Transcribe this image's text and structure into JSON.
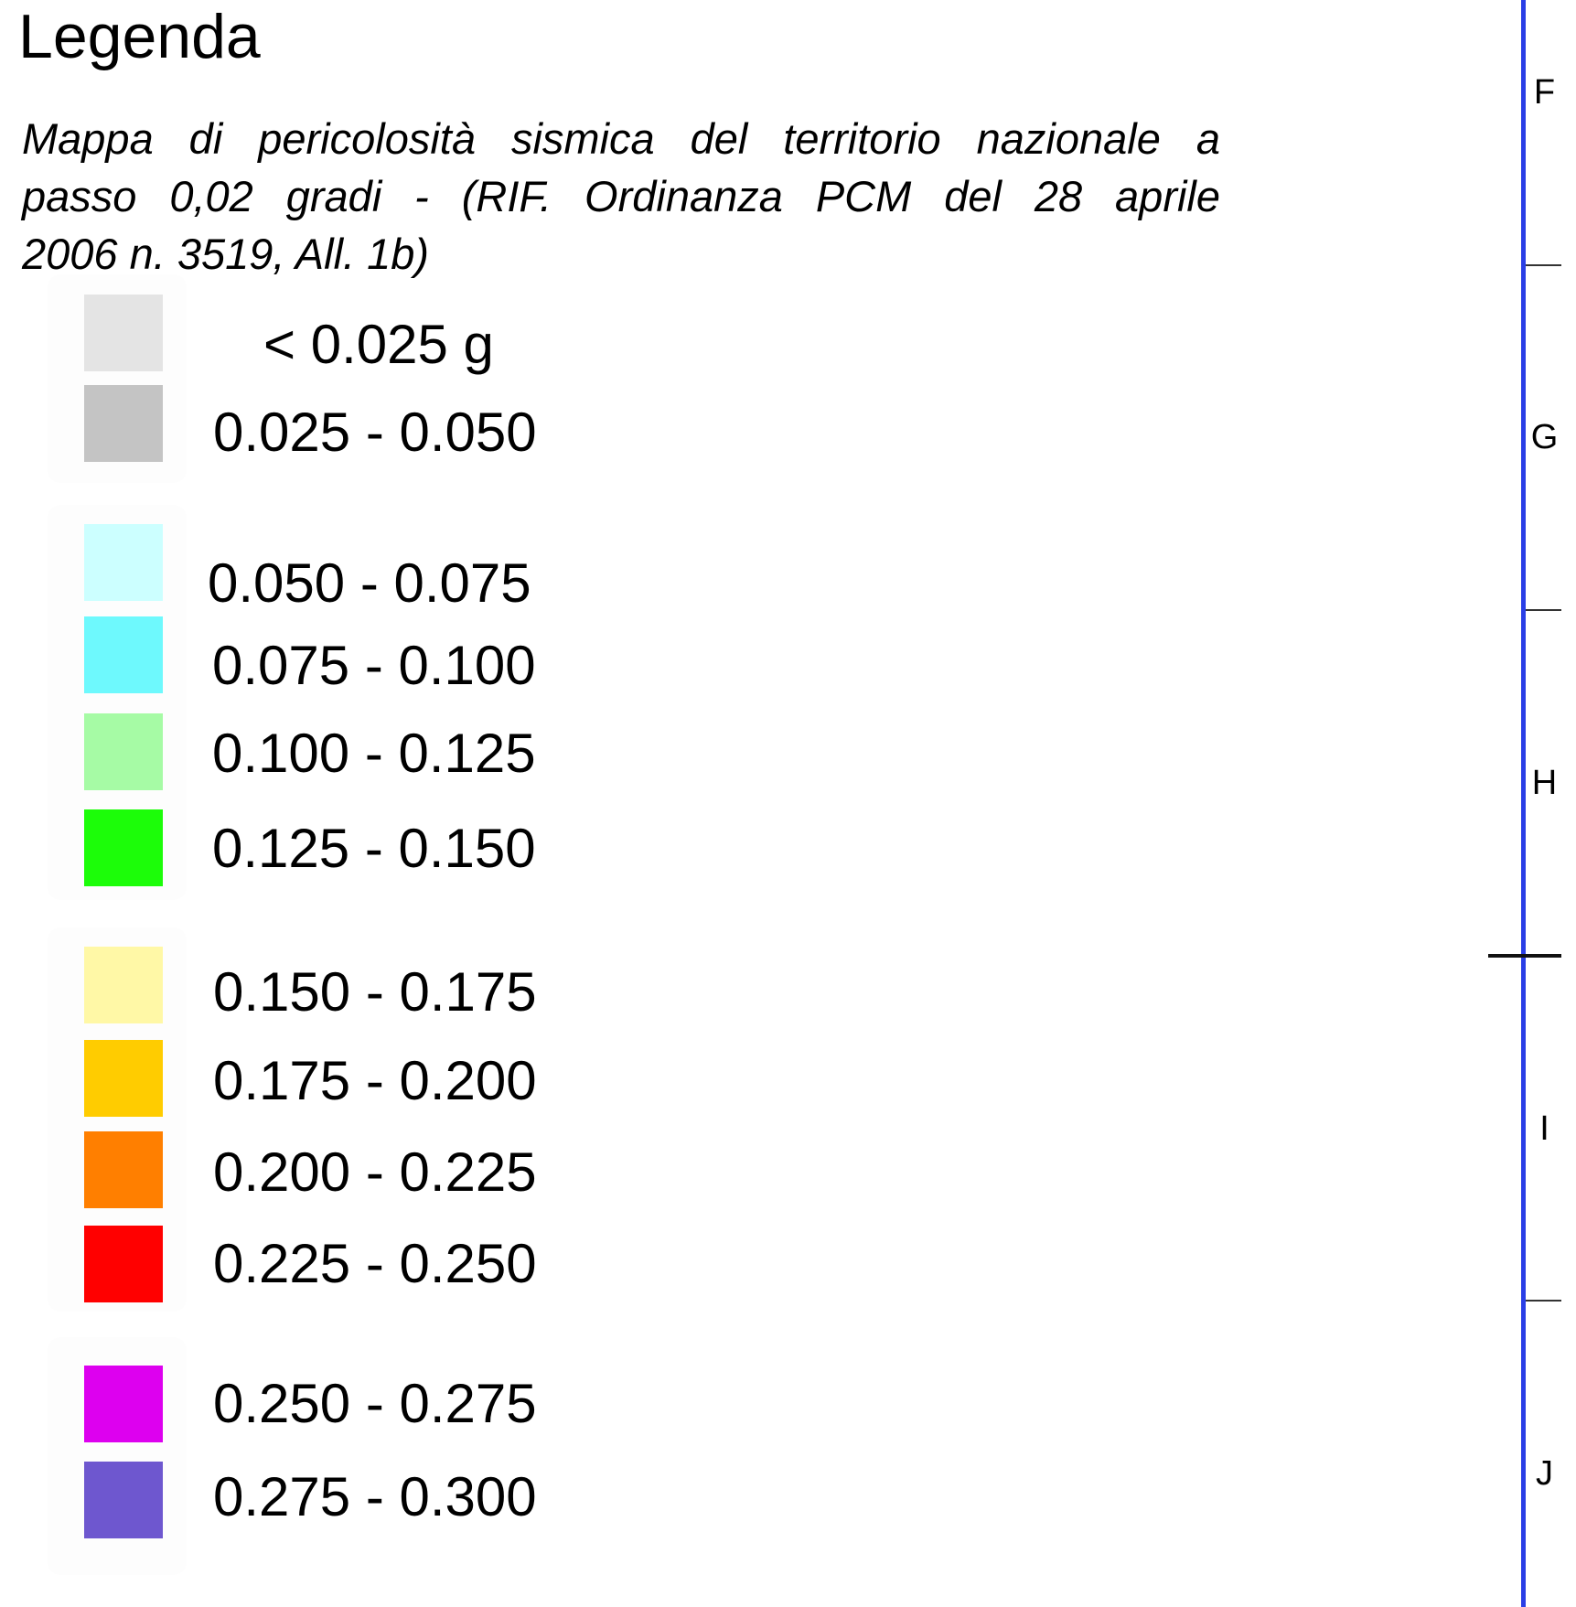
{
  "legend": {
    "title": "Legenda",
    "description_lines": [
      "Mappa di pericolosità sismica del territorio nazionale  a",
      "passo 0,02 gradi - (RIF. Ordinanza PCM del 28 aprile",
      "2006 n. 3519, All. 1b)"
    ],
    "classes": [
      {
        "label": "< 0.025 g",
        "color": "#e4e4e4"
      },
      {
        "label": "0.025 - 0.050",
        "color": "#c4c4c4"
      },
      {
        "label": "0.050 - 0.075",
        "color": "#ccffff"
      },
      {
        "label": "0.075 - 0.100",
        "color": "#6ef9fd"
      },
      {
        "label": "0.100 - 0.125",
        "color": "#a6fba5"
      },
      {
        "label": "0.125 - 0.150",
        "color": "#1cfd09"
      },
      {
        "label": "0.150 - 0.175",
        "color": "#fff8a6"
      },
      {
        "label": "0.175 - 0.200",
        "color": "#ffcc00"
      },
      {
        "label": "0.200 - 0.225",
        "color": "#ff7f00"
      },
      {
        "label": "0.225 - 0.250",
        "color": "#ff0000"
      },
      {
        "label": "0.250 - 0.275",
        "color": "#dd00ef"
      },
      {
        "label": "0.275 - 0.300",
        "color": "#6e57cf"
      }
    ]
  },
  "grid": {
    "line_color": "#2a3fe6",
    "zones": [
      "F",
      "G",
      "H",
      "I",
      "J"
    ]
  }
}
